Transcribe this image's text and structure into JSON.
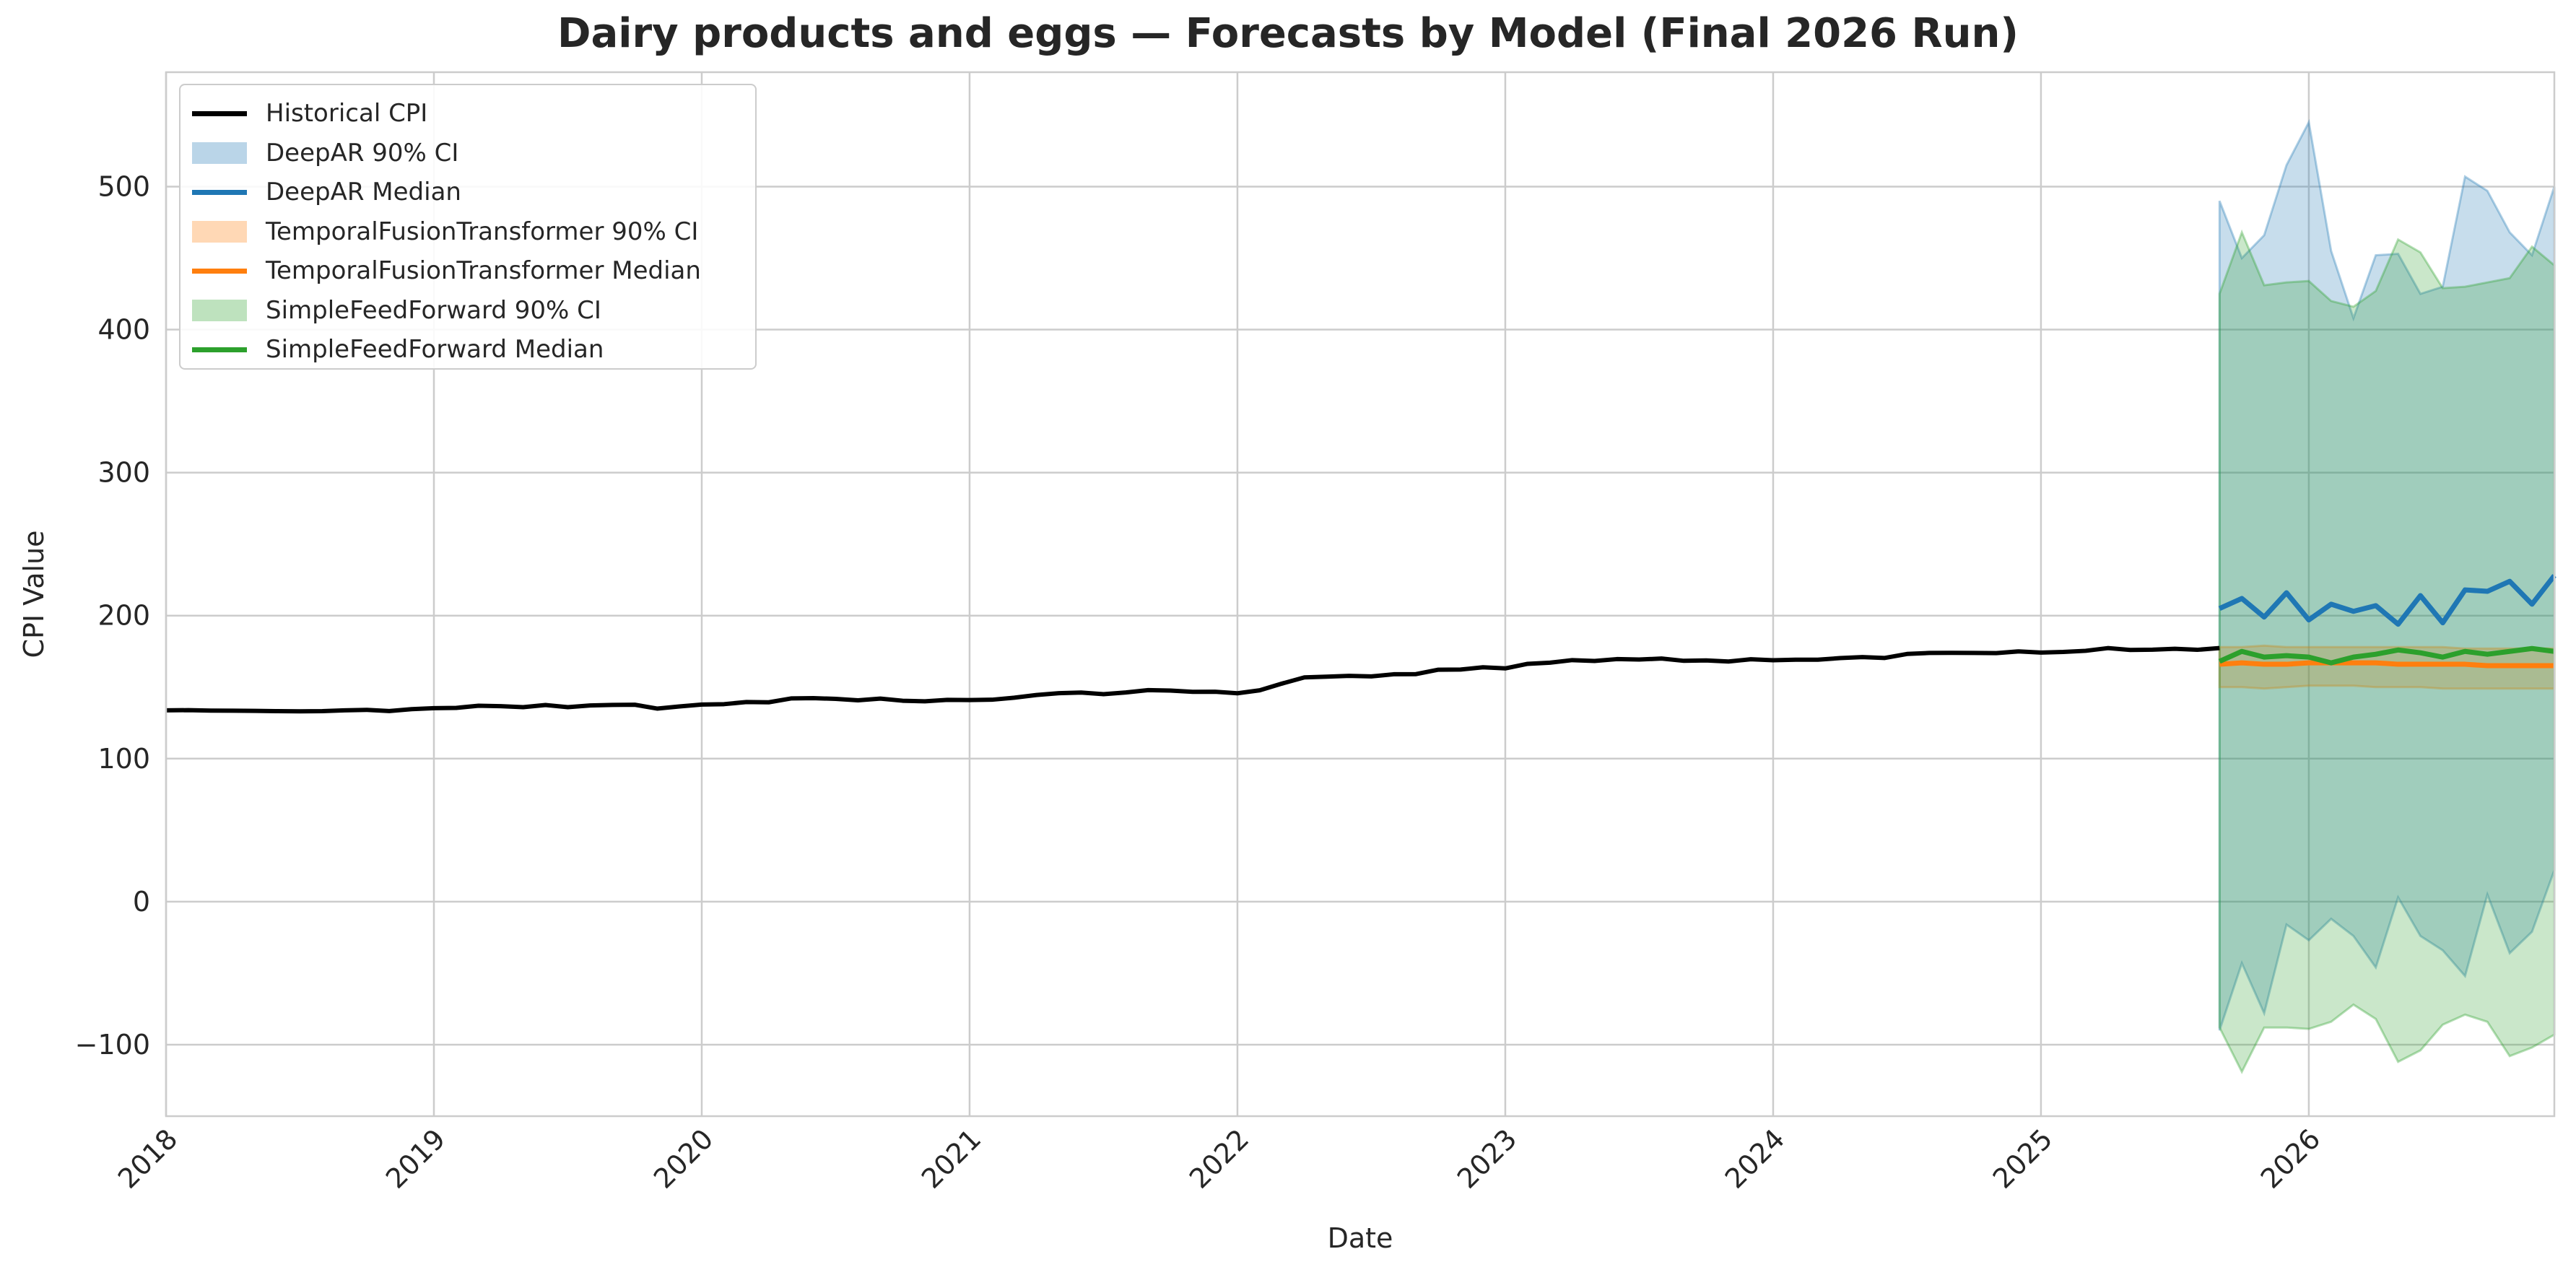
{
  "chart_data": {
    "type": "line",
    "title": "Dairy products and eggs — Forecasts by Model (Final 2026 Run)",
    "xlabel": "Date",
    "ylabel": "CPI Value",
    "xlim": [
      "2018-01",
      "2026-12"
    ],
    "ylim": [
      -150,
      580
    ],
    "x_ticks": [
      "2018",
      "2019",
      "2020",
      "2021",
      "2022",
      "2023",
      "2024",
      "2025",
      "2026"
    ],
    "y_ticks": [
      -100,
      0,
      100,
      200,
      300,
      400,
      500
    ],
    "y_tick_labels": [
      "−100",
      "0",
      "100",
      "200",
      "300",
      "400",
      "500"
    ],
    "grid": true,
    "legend_position": "top-left",
    "legend": [
      {
        "label": "Historical CPI",
        "kind": "line",
        "color": "#000000"
      },
      {
        "label": "DeepAR 90% CI",
        "kind": "patch",
        "color": "#1f77b4"
      },
      {
        "label": "DeepAR Median",
        "kind": "line",
        "color": "#1f77b4"
      },
      {
        "label": "TemporalFusionTransformer 90% CI",
        "kind": "patch",
        "color": "#ff7f0e"
      },
      {
        "label": "TemporalFusionTransformer Median",
        "kind": "line",
        "color": "#ff7f0e"
      },
      {
        "label": "SimpleFeedForward 90% CI",
        "kind": "patch",
        "color": "#2ca02c"
      },
      {
        "label": "SimpleFeedForward Median",
        "kind": "line",
        "color": "#2ca02c"
      }
    ],
    "historical": {
      "name": "Historical CPI",
      "color": "#000000",
      "start": "2018-01",
      "values": [
        133.8,
        133.9,
        133.6,
        133.5,
        133.4,
        133.2,
        133.1,
        133.2,
        133.8,
        134.1,
        133.3,
        134.6,
        135.3,
        135.5,
        137.0,
        136.7,
        136.0,
        137.5,
        136.0,
        137.2,
        137.6,
        137.7,
        135.0,
        136.5,
        137.8,
        138.1,
        139.6,
        139.4,
        142.1,
        142.3,
        141.8,
        140.8,
        142.0,
        140.5,
        140.1,
        141.1,
        141.0,
        141.2,
        142.6,
        144.5,
        145.8,
        146.2,
        145.1,
        146.3,
        147.9,
        147.6,
        146.7,
        146.8,
        145.7,
        147.8,
        152.5,
        156.8,
        157.3,
        157.9,
        157.5,
        159.0,
        159.1,
        162.2,
        162.3,
        163.9,
        163.1,
        166.3,
        167.1,
        168.9,
        168.3,
        169.6,
        169.3,
        170.0,
        168.4,
        168.7,
        167.9,
        169.5,
        168.8,
        169.2,
        169.2,
        170.3,
        171.0,
        170.4,
        173.2,
        173.9,
        174.0,
        173.9,
        173.8,
        175.0,
        174.2,
        174.6,
        175.4,
        177.3,
        176.0,
        176.2,
        176.8,
        176.1,
        177.3
      ]
    },
    "forecast_start": "2025-09",
    "forecasts": [
      {
        "name": "DeepAR",
        "color": "#1f77b4",
        "median": [
          205.0,
          212.0,
          199.0,
          216.0,
          197.0,
          208.0,
          203.0,
          207.0,
          194.0,
          214.0,
          195.0,
          218.0,
          217.0,
          224.0,
          208.0,
          228.0
        ],
        "ci_upper": [
          490.0,
          450.0,
          466.0,
          515.0,
          545.0,
          455.0,
          408.0,
          452.0,
          453.0,
          425.0,
          430.0,
          507.0,
          497.0,
          468.0,
          452.0,
          500.0
        ],
        "ci_lower": [
          -90.0,
          -43.0,
          -78.0,
          -16.0,
          -27.0,
          -12.0,
          -24.0,
          -46.0,
          3.0,
          -24.0,
          -34.0,
          -52.0,
          5.0,
          -36.0,
          -21.0,
          22.0
        ]
      },
      {
        "name": "TemporalFusionTransformer",
        "color": "#ff7f0e",
        "median": [
          166.0,
          167.0,
          166.0,
          166.0,
          167.0,
          167.0,
          167.0,
          167.0,
          166.0,
          166.0,
          166.0,
          166.0,
          165.0,
          165.0,
          165.0,
          165.0
        ],
        "ci_upper": [
          178.0,
          178.0,
          179.0,
          178.0,
          178.0,
          178.0,
          178.0,
          178.0,
          178.0,
          178.0,
          178.0,
          177.0,
          177.0,
          177.0,
          177.0,
          177.0
        ],
        "ci_lower": [
          150.0,
          150.0,
          149.0,
          150.0,
          151.0,
          151.0,
          151.0,
          150.0,
          150.0,
          150.0,
          149.0,
          149.0,
          149.0,
          149.0,
          149.0,
          149.0
        ]
      },
      {
        "name": "SimpleFeedForward",
        "color": "#2ca02c",
        "median": [
          168.0,
          175.0,
          171.0,
          172.0,
          171.0,
          167.0,
          171.0,
          173.0,
          176.0,
          174.0,
          171.0,
          175.0,
          173.0,
          175.0,
          177.0,
          175.0
        ],
        "ci_upper": [
          425.0,
          468.0,
          431.0,
          433.0,
          434.0,
          420.0,
          416.0,
          427.0,
          463.0,
          454.0,
          429.0,
          430.0,
          433.0,
          436.0,
          458.0,
          445.0
        ],
        "ci_lower": [
          -88.0,
          -119.0,
          -88.0,
          -88.0,
          -89.0,
          -84.0,
          -72.0,
          -82.0,
          -112.0,
          -104.0,
          -86.0,
          -79.0,
          -84.0,
          -108.0,
          -102.0,
          -93.0
        ]
      }
    ]
  }
}
